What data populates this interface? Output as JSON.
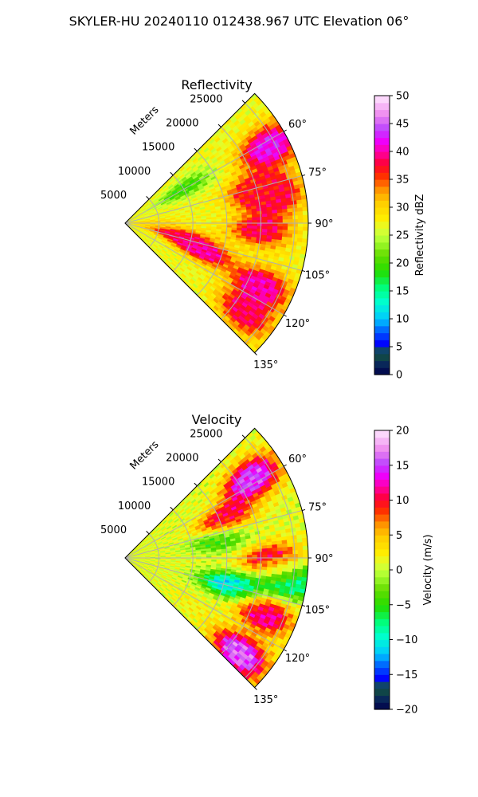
{
  "figure_title": "SKYLER-HU  20240110  012438.967 UTC Elevation 06°",
  "chart_data": [
    {
      "type": "heatmap",
      "subtype": "polar-sector radar PPI",
      "title": "Reflectivity",
      "range_label": "Meters",
      "range_ticks": [
        "5000",
        "10000",
        "15000",
        "20000",
        "25000"
      ],
      "range_max": 27000,
      "azimuth_range_deg": [
        45,
        135
      ],
      "azimuth_ticks": [
        "60°",
        "75°",
        "90°",
        "105°",
        "120°",
        "135°"
      ],
      "grid": true,
      "colorbar": {
        "label": "Reflectivity dBZ",
        "min": 0,
        "max": 50,
        "ticks": [
          "0",
          "5",
          "10",
          "15",
          "20",
          "25",
          "30",
          "35",
          "40",
          "45",
          "50"
        ]
      },
      "field_features": [
        {
          "azimuth": 62,
          "range": 24000,
          "value": 42
        },
        {
          "azimuth": 75,
          "range": 20000,
          "value": 36
        },
        {
          "azimuth": 80,
          "range": 22000,
          "value": 38
        },
        {
          "azimuth": 93,
          "range": 20000,
          "value": 38
        },
        {
          "azimuth": 103,
          "range": 8000,
          "value": 38
        },
        {
          "azimuth": 110,
          "range": 12000,
          "value": 40
        },
        {
          "azimuth": 115,
          "range": 22000,
          "value": 40
        },
        {
          "azimuth": 127,
          "range": 22000,
          "value": 38
        },
        {
          "azimuth": 60,
          "range": 10000,
          "value": 20
        },
        {
          "azimuth": 90,
          "range": 4000,
          "value": 30
        }
      ]
    },
    {
      "type": "heatmap",
      "subtype": "polar-sector radar PPI",
      "title": "Velocity",
      "range_label": "Meters",
      "range_ticks": [
        "5000",
        "10000",
        "15000",
        "20000",
        "25000"
      ],
      "range_max": 27000,
      "azimuth_range_deg": [
        45,
        135
      ],
      "azimuth_ticks": [
        "60°",
        "75°",
        "90°",
        "105°",
        "120°",
        "135°"
      ],
      "grid": true,
      "colorbar": {
        "label": "Velocity (m/s)",
        "min": -20,
        "max": 20,
        "ticks": [
          "−20",
          "−15",
          "−10",
          "−5",
          "0",
          "5",
          "10",
          "15",
          "20"
        ]
      },
      "field_features": [
        {
          "azimuth": 58,
          "range": 22000,
          "value": 15
        },
        {
          "azimuth": 68,
          "range": 16000,
          "value": 10
        },
        {
          "azimuth": 80,
          "range": 14000,
          "value": -4
        },
        {
          "azimuth": 92,
          "range": 22000,
          "value": 14
        },
        {
          "azimuth": 97,
          "range": 24000,
          "value": -12
        },
        {
          "azimuth": 105,
          "range": 16000,
          "value": -11
        },
        {
          "azimuth": 112,
          "range": 22000,
          "value": 12
        },
        {
          "azimuth": 125,
          "range": 12000,
          "value": 2
        },
        {
          "azimuth": 130,
          "range": 22000,
          "value": 16
        }
      ]
    }
  ]
}
